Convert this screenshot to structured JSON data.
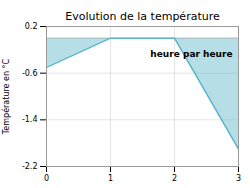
{
  "chart_data": {
    "type": "area",
    "title": "Evolution de la température",
    "annotation": "heure par heure",
    "ylabel": "Température en °C",
    "x": [
      0,
      1,
      2,
      3
    ],
    "values": [
      -0.5,
      0.0,
      0.0,
      -1.9
    ],
    "baseline": 0.0,
    "color": "#5bb5c8",
    "xlim": [
      0,
      3
    ],
    "xticks": [
      0,
      1,
      2,
      3
    ],
    "ylim": [
      -2.2,
      0.2
    ],
    "yticks": [
      0.2,
      -0.6,
      -1.4,
      -2.2
    ],
    "grid": true
  }
}
